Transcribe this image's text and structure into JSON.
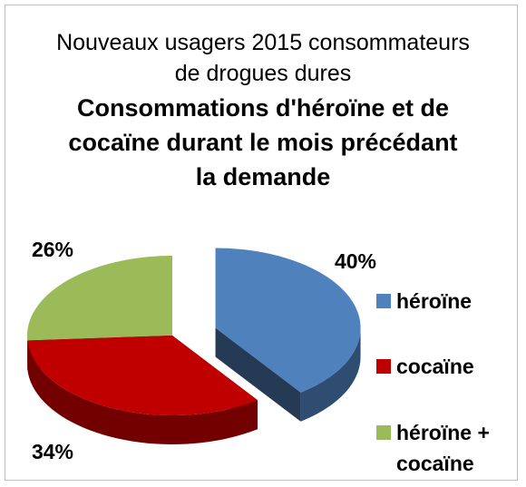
{
  "chart_data": {
    "type": "pie",
    "title": "Nouveaux usagers 2015 consommateurs de drogues dures",
    "subtitle": "Consommations d'héroïne et de cocaïne durant le mois précédant la demande",
    "categories": [
      "héroïne",
      "cocaïne",
      "héroïne + cocaïne"
    ],
    "values": [
      40,
      34,
      26
    ],
    "value_labels": [
      "40%",
      "34%",
      "26%"
    ],
    "colors": [
      "#4f81bd",
      "#c00000",
      "#9bbb59"
    ],
    "legend": "right"
  }
}
